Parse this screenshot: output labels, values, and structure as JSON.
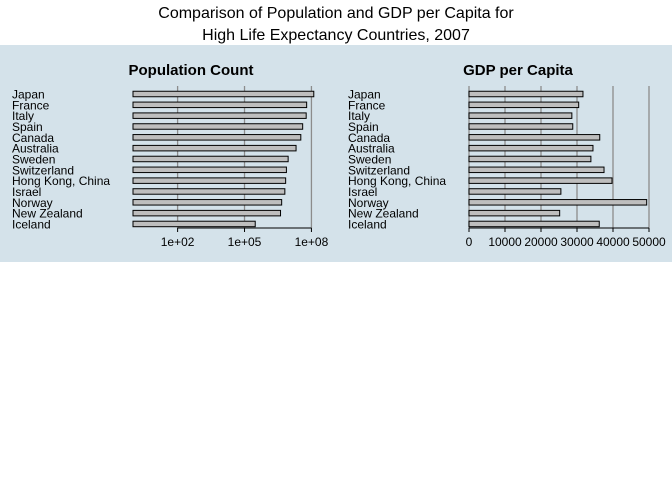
{
  "title": {
    "line1": "Comparison of Population and GDP per Capita for",
    "line2": "High Life Expectancy Countries, 2007"
  },
  "colors": {
    "panel_background": "#d4e2ea",
    "bar_fill": "#bebebe",
    "bar_stroke": "#000000",
    "gridline": "#8c8c8c"
  },
  "chart_data": [
    {
      "type": "bar",
      "orientation": "horizontal",
      "title": "Population Count",
      "xscale": "log",
      "categories": [
        "Japan",
        "France",
        "Italy",
        "Spain",
        "Canada",
        "Australia",
        "Sweden",
        "Switzerland",
        "Hong Kong, China",
        "Israel",
        "Norway",
        "New Zealand",
        "Iceland"
      ],
      "values": [
        127467972,
        61083916,
        58147733,
        40448191,
        33390141,
        20434176,
        9031088,
        7554661,
        6980412,
        6426679,
        4627926,
        4115771,
        301931
      ],
      "ticks": [
        100,
        100000,
        100000000
      ],
      "tick_labels": [
        "1e+02",
        "1e+05",
        "1e+08"
      ],
      "xlim": [
        1,
        150000000
      ],
      "grid": true
    },
    {
      "type": "bar",
      "orientation": "horizontal",
      "title": "GDP per Capita",
      "xscale": "linear",
      "categories": [
        "Japan",
        "France",
        "Italy",
        "Spain",
        "Canada",
        "Australia",
        "Sweden",
        "Switzerland",
        "Hong Kong, China",
        "Israel",
        "Norway",
        "New Zealand",
        "Iceland"
      ],
      "values": [
        31656,
        30470,
        28570,
        28821,
        36319,
        34435,
        33860,
        37506,
        39725,
        25523,
        49357,
        25185,
        36181
      ],
      "ticks": [
        0,
        10000,
        20000,
        30000,
        40000,
        50000
      ],
      "tick_labels": [
        "0",
        "10000",
        "20000",
        "30000",
        "40000",
        "50000"
      ],
      "xlim": [
        0,
        52000
      ],
      "grid": true
    }
  ]
}
